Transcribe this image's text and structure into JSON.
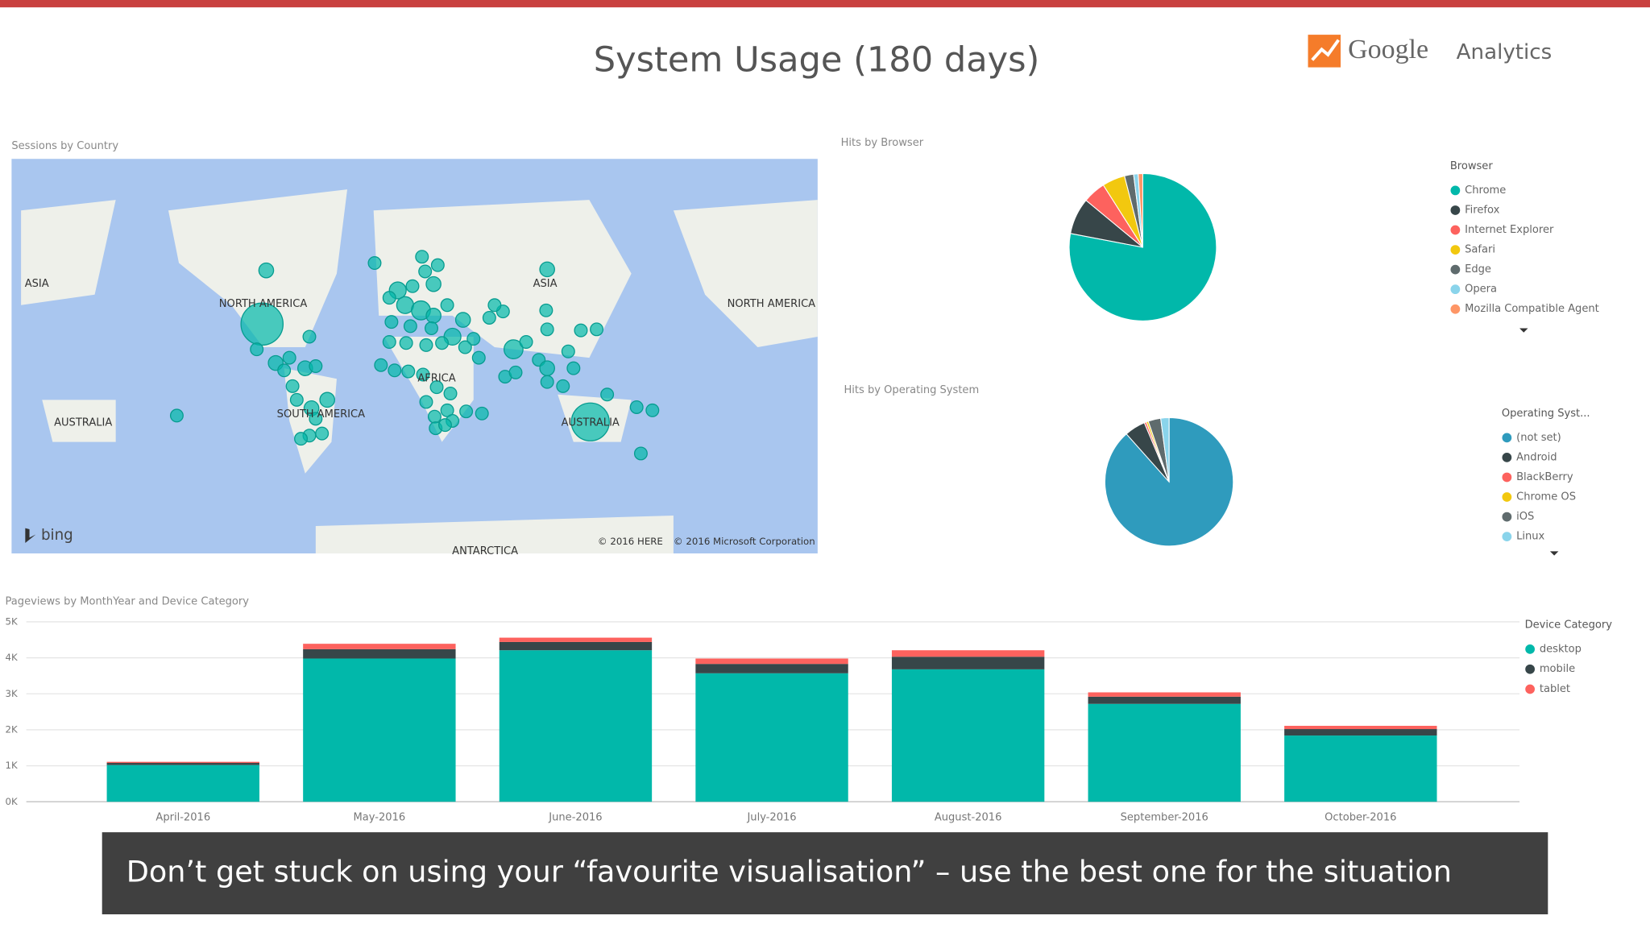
{
  "title": "System Usage (180 days)",
  "logo": {
    "brand": "Google",
    "product": "Analytics"
  },
  "map": {
    "title": "Sessions by Country",
    "labels": [
      "ASIA",
      "NORTH AMERICA",
      "ASIA",
      "NORTH AMERICA",
      "AUSTRALIA",
      "SOUTH AMERICA",
      "AFRICA",
      "AUSTRALIA",
      "ANTARCTICA"
    ],
    "provider": "bing",
    "attribution": [
      "© 2016 HERE",
      "© 2016 Microsoft Corporation"
    ]
  },
  "chart_data": [
    {
      "type": "pie",
      "title": "Hits by Browser",
      "legend_title": "Browser",
      "categories": [
        "Chrome",
        "Firefox",
        "Internet Explorer",
        "Safari",
        "Edge",
        "Opera",
        "Mozilla Compatible Agent"
      ],
      "values": [
        78,
        8,
        5,
        5,
        2,
        1,
        1
      ],
      "colors": [
        "#01b8aa",
        "#374649",
        "#fd625e",
        "#f2c80f",
        "#5f6b6d",
        "#8ad4eb",
        "#fe9666"
      ]
    },
    {
      "type": "pie",
      "title": "Hits by Operating System",
      "legend_title": "Operating Syst...",
      "categories": [
        "(not set)",
        "Android",
        "BlackBerry",
        "Chrome OS",
        "iOS",
        "Linux"
      ],
      "values": [
        84,
        5,
        0.5,
        0.5,
        3,
        2
      ],
      "colors": [
        "#2f9bbd",
        "#374649",
        "#fd625e",
        "#f2c80f",
        "#5f6b6d",
        "#8ad4eb"
      ]
    },
    {
      "type": "bar",
      "stacked": true,
      "title": "Pageviews by MonthYear and Device Category",
      "legend_title": "Device Category",
      "categories": [
        "April-2016",
        "May-2016",
        "June-2016",
        "July-2016",
        "August-2016",
        "September-2016",
        "October-2016"
      ],
      "series": [
        {
          "name": "desktop",
          "color": "#01b8aa",
          "values": [
            1020,
            3980,
            4210,
            3570,
            3680,
            2720,
            1840
          ]
        },
        {
          "name": "mobile",
          "color": "#374649",
          "values": [
            60,
            260,
            230,
            260,
            350,
            200,
            180
          ]
        },
        {
          "name": "tablet",
          "color": "#fd625e",
          "values": [
            30,
            150,
            120,
            150,
            180,
            120,
            90
          ]
        }
      ],
      "ylim": [
        0,
        5000
      ],
      "yticks": [
        {
          "value": 0,
          "label": "0K"
        },
        {
          "value": 1000,
          "label": "1K"
        },
        {
          "value": 2000,
          "label": "2K"
        },
        {
          "value": 3000,
          "label": "3K"
        },
        {
          "value": 4000,
          "label": "4K"
        },
        {
          "value": 5000,
          "label": "5K"
        }
      ],
      "grid": true
    }
  ],
  "caption": "Don’t get stuck on using your “favourite visualisation” – use the best one for the situation"
}
